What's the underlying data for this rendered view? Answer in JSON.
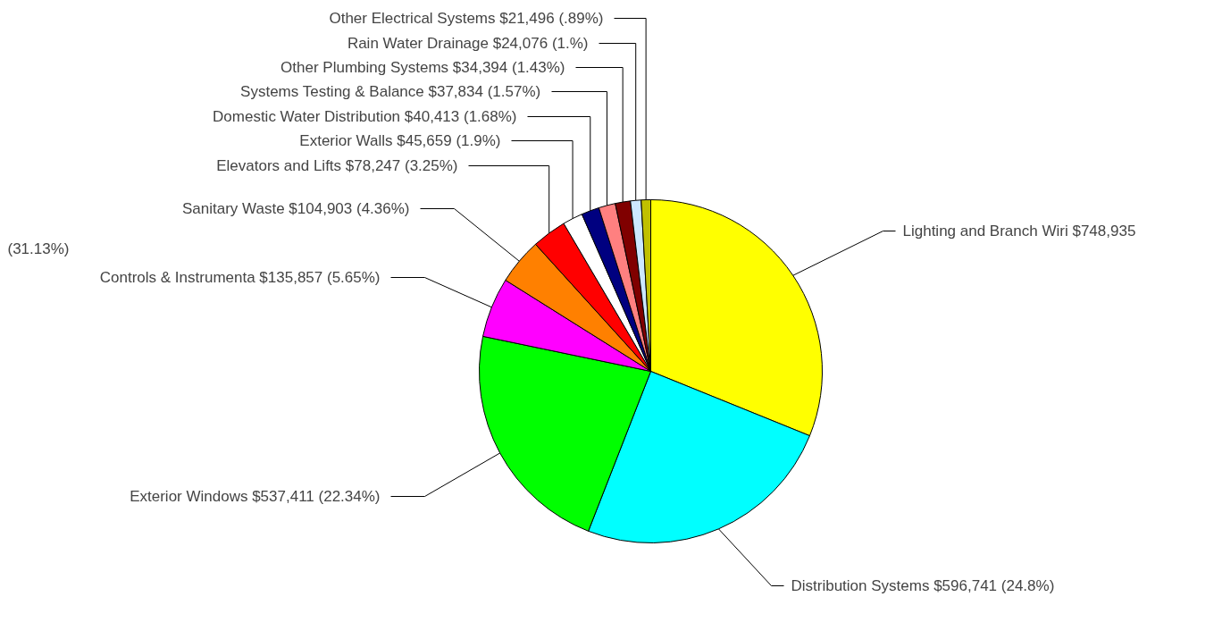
{
  "chart_data": {
    "type": "pie",
    "categories": [
      "Lighting and Branch Wiri",
      "Distribution Systems",
      "Exterior Windows",
      "Controls & Instrumenta",
      "Sanitary Waste",
      "Elevators and Lifts",
      "Exterior Walls",
      "Domestic Water Distribution",
      "Systems Testing & Balance",
      "Other Plumbing Systems",
      "Rain Water Drainage",
      "Other Electrical Systems"
    ],
    "values": [
      748935,
      596741,
      537411,
      135857,
      104903,
      78247,
      45659,
      40413,
      37834,
      34394,
      24076,
      21496
    ],
    "colors": [
      "#ffff00",
      "#00ffff",
      "#00ff00",
      "#ff00ff",
      "#ff8000",
      "#ff0000",
      "#ffffff",
      "#000080",
      "#ff8080",
      "#800000",
      "#cce8ff",
      "#c0c000"
    ],
    "value_labels": [
      "$748,935",
      "$596,741 (24.8%)",
      "$537,411 (22.34%)",
      "$135,857 (5.65%)",
      "$104,903 (4.36%)",
      "$78,247 (3.25%)",
      "$45,659 (1.9%)",
      "$40,413 (1.68%)",
      "$37,834 (1.57%)",
      "$34,394 (1.43%)",
      "$24,076 (1.%)",
      "$21,496 (.89%)"
    ],
    "annotations": [
      "(31.13%)"
    ],
    "legend": false
  }
}
